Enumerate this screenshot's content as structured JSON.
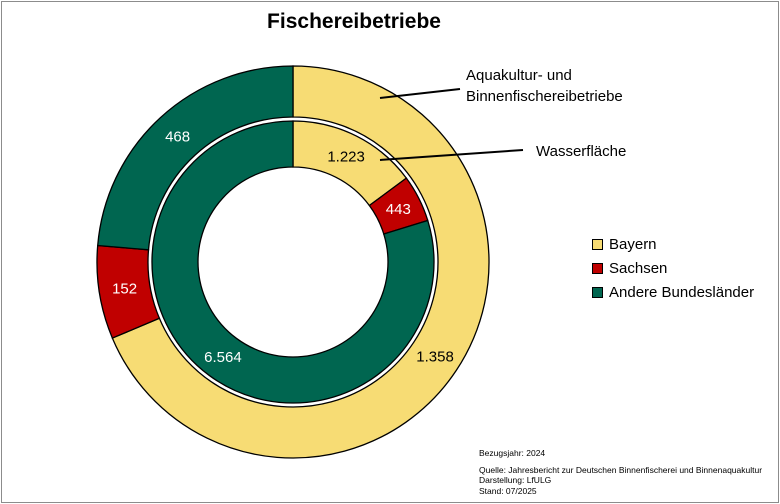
{
  "chart_data": {
    "type": "pie",
    "variant": "donut",
    "title": "Fischereibetriebe",
    "categories": [
      "Bayern",
      "Sachsen",
      "Andere Bundesländer"
    ],
    "colors": [
      "#f7dc74",
      "#c00000",
      "#006650"
    ],
    "rings": [
      {
        "name": "Aquakultur-  und Binnenfischereibetriebe",
        "position": "outer",
        "values": [
          1358,
          152,
          468
        ],
        "value_labels": [
          "1.358",
          "152",
          "468"
        ]
      },
      {
        "name": "Wasserfläche",
        "position": "inner",
        "values": [
          1223,
          443,
          6564
        ],
        "value_labels": [
          "1.223",
          "443",
          "6.564"
        ]
      }
    ],
    "ring_label_lines": {
      "outer": [
        "Aquakultur-  und",
        "Binnenfischereibetriebe"
      ],
      "inner": [
        "Wasserfläche"
      ]
    },
    "legend_position": "right"
  },
  "footer": {
    "reference_year": "Bezugsjahr:  2024",
    "source": "Quelle:  Jahresbericht zur Deutschen Binnenfischerei und Binnenaquakultur",
    "created_by": "Darstellung:  LfULG",
    "status": "Stand:  07/2025"
  }
}
